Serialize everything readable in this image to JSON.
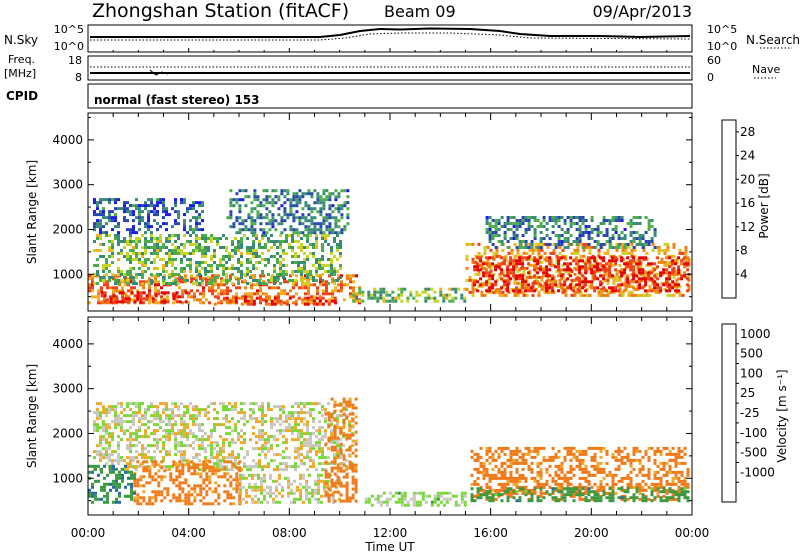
{
  "header": {
    "station": "Zhongshan Station (fitACF)",
    "beam": "Beam 09",
    "date": "09/Apr/2013"
  },
  "noise_panel": {
    "left_label": "N.Sky",
    "left_ticks": [
      "10^5",
      "10^0"
    ],
    "right_ticks": [
      "10^5",
      "10^0"
    ],
    "right_label": "N.Search"
  },
  "freq_panel": {
    "left_label_1": "Freq.",
    "left_label_2": "[MHz]",
    "left_ticks": [
      "18",
      "8"
    ],
    "right_ticks": [
      "60",
      "0"
    ],
    "right_label": "Nave"
  },
  "cpid_panel": {
    "label": "CPID",
    "mode": "normal (fast stereo) 153"
  },
  "colors": {
    "power": [
      "#1a1aee",
      "#2848b0",
      "#3a8a78",
      "#4cad4c",
      "#c8d426",
      "#f0b020",
      "#f08010",
      "#f04018",
      "#e80000"
    ],
    "velocity": [
      "#ee1010",
      "#f03a10",
      "#f07a1a",
      "#f0aa2a",
      "#c8c8c0",
      "#7ad83a",
      "#3a9a40",
      "#2a6aa0",
      "#1a3aa8"
    ]
  },
  "chart_data": [
    {
      "type": "heatmap",
      "xlabel": "",
      "ylabel": "Slant Range [km]",
      "x_range_hours": [
        0,
        24
      ],
      "ylim": [
        180,
        4600
      ],
      "y_ticks": [
        1000,
        2000,
        3000,
        4000
      ],
      "colorbar_label": "Power [dB]",
      "colorbar_ticks": [
        4,
        8,
        12,
        16,
        20,
        24,
        28
      ],
      "colorbar_range": [
        0,
        30
      ],
      "regions": [
        {
          "x": [
            0.0,
            10.8
          ],
          "y": [
            350,
            1000
          ],
          "value": 22
        },
        {
          "x": [
            0.2,
            10.0
          ],
          "y": [
            800,
            1900
          ],
          "value": 12
        },
        {
          "x": [
            0.2,
            4.5
          ],
          "y": [
            1900,
            2700
          ],
          "value": 6
        },
        {
          "x": [
            5.5,
            10.3
          ],
          "y": [
            1900,
            2900
          ],
          "value": 8
        },
        {
          "x": [
            0.5,
            4.0
          ],
          "y": [
            380,
            620
          ],
          "value": 27
        },
        {
          "x": [
            5.0,
            9.8
          ],
          "y": [
            300,
            500
          ],
          "value": 26
        },
        {
          "x": [
            10.5,
            15.0
          ],
          "y": [
            400,
            700
          ],
          "value": 12
        },
        {
          "x": [
            15.0,
            23.9
          ],
          "y": [
            500,
            1700
          ],
          "value": 20
        },
        {
          "x": [
            15.3,
            23.8
          ],
          "y": [
            650,
            1400
          ],
          "value": 27
        },
        {
          "x": [
            15.8,
            22.5
          ],
          "y": [
            1600,
            2300
          ],
          "value": 8
        }
      ]
    },
    {
      "type": "heatmap",
      "xlabel": "Time UT",
      "ylabel": "Slant Range [km]",
      "x_range_hours": [
        0,
        24
      ],
      "x_ticks": [
        "00:00",
        "04:00",
        "08:00",
        "12:00",
        "16:00",
        "20:00",
        "00:00"
      ],
      "ylim": [
        180,
        4600
      ],
      "y_ticks": [
        1000,
        2000,
        3000,
        4000
      ],
      "colorbar_label": "Velocity [m s⁻¹]",
      "colorbar_ticks": [
        "1000",
        "500",
        "100",
        "25",
        "-25",
        "-100",
        "-500",
        "-1000"
      ],
      "regions": [
        {
          "x": [
            0.2,
            10.5
          ],
          "y": [
            1200,
            2700
          ],
          "value": 0
        },
        {
          "x": [
            1.8,
            6.0
          ],
          "y": [
            450,
            1400
          ],
          "value": -200
        },
        {
          "x": [
            0.0,
            1.8
          ],
          "y": [
            450,
            1300
          ],
          "value": 400
        },
        {
          "x": [
            6.0,
            10.0
          ],
          "y": [
            450,
            1100
          ],
          "value": 0
        },
        {
          "x": [
            9.4,
            10.6
          ],
          "y": [
            500,
            2800
          ],
          "value": -250
        },
        {
          "x": [
            15.2,
            23.8
          ],
          "y": [
            550,
            1700
          ],
          "value": -220
        },
        {
          "x": [
            15.2,
            23.8
          ],
          "y": [
            500,
            800
          ],
          "value": 300
        },
        {
          "x": [
            11.0,
            15.0
          ],
          "y": [
            400,
            700
          ],
          "value": 50
        }
      ]
    }
  ]
}
